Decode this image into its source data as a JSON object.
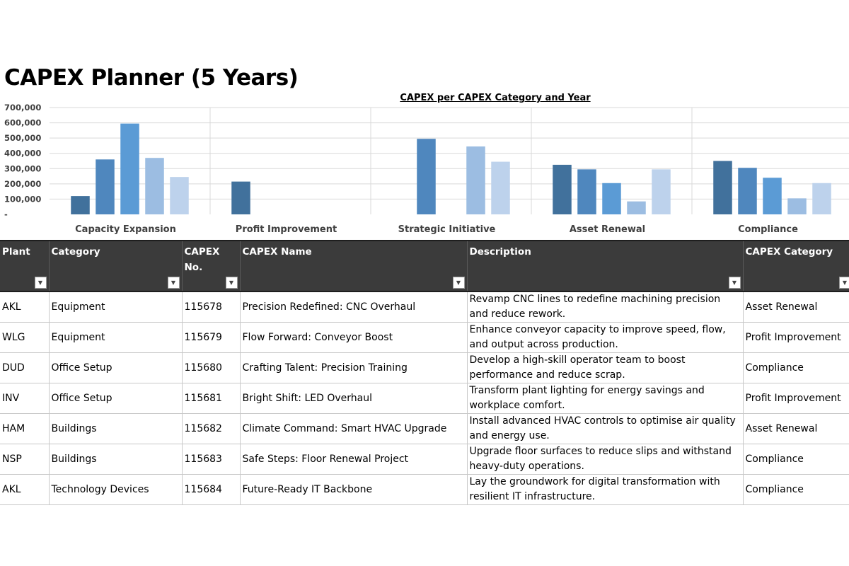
{
  "page": {
    "title": "CAPEX Planner (5 Years)"
  },
  "chart_data": {
    "type": "bar",
    "title": "CAPEX per CAPEX Category and Year",
    "categories": [
      "Capacity Expansion",
      "Profit Improvement",
      "Strategic Initiative",
      "Asset Renewal",
      "Compliance"
    ],
    "series": [
      {
        "values": [
          120000,
          215000,
          0,
          325000,
          350000
        ]
      },
      {
        "values": [
          360000,
          0,
          495000,
          295000,
          305000
        ]
      },
      {
        "values": [
          595000,
          0,
          0,
          205000,
          240000
        ]
      },
      {
        "values": [
          370000,
          0,
          445000,
          85000,
          105000
        ]
      },
      {
        "values": [
          245000,
          0,
          345000,
          295000,
          205000
        ]
      }
    ],
    "ylim": [
      0,
      700000
    ],
    "yticks": [
      0,
      100000,
      200000,
      300000,
      400000,
      500000,
      600000,
      700000
    ],
    "ytick_labels": [
      "-",
      "100,000",
      "200,000",
      "300,000",
      "400,000",
      "500,000",
      "600,000",
      "700,000"
    ],
    "colors": [
      "#41719c",
      "#4f87be",
      "#5b9bd5",
      "#9cbde2",
      "#bdd2ec"
    ],
    "grid": true
  },
  "table": {
    "headers": [
      {
        "label": "Plant",
        "filter": "▼"
      },
      {
        "label": "Category",
        "filter": "▼"
      },
      {
        "label": "CAPEX No.",
        "filter": "▼"
      },
      {
        "label": "CAPEX Name",
        "filter": "▼"
      },
      {
        "label": "Description",
        "filter": "▼"
      },
      {
        "label": "CAPEX Category",
        "filter": "▼"
      }
    ],
    "rows": [
      {
        "plant": "AKL",
        "category": "Equipment",
        "no": "115678",
        "name": "Precision Redefined: CNC Overhaul",
        "description": "Revamp CNC lines to redefine machining precision and reduce rework.",
        "capex_category": "Asset Renewal"
      },
      {
        "plant": "WLG",
        "category": "Equipment",
        "no": "115679",
        "name": "Flow Forward: Conveyor Boost",
        "description": "Enhance conveyor capacity to improve speed, flow, and output across production.",
        "capex_category": "Profit Improvement"
      },
      {
        "plant": "DUD",
        "category": "Office Setup",
        "no": "115680",
        "name": "Crafting Talent: Precision Training",
        "description": "Develop a high-skill operator team to boost performance and reduce scrap.",
        "capex_category": "Compliance"
      },
      {
        "plant": "INV",
        "category": "Office Setup",
        "no": "115681",
        "name": "Bright Shift: LED Overhaul",
        "description": "Transform plant lighting for energy savings and workplace comfort.",
        "capex_category": "Profit Improvement"
      },
      {
        "plant": "HAM",
        "category": "Buildings",
        "no": "115682",
        "name": "Climate Command: Smart HVAC Upgrade",
        "description": "Install advanced HVAC controls to optimise air quality and energy use.",
        "capex_category": "Asset Renewal"
      },
      {
        "plant": "NSP",
        "category": "Buildings",
        "no": "115683",
        "name": "Safe Steps: Floor Renewal Project",
        "description": "Upgrade floor surfaces to reduce slips and withstand heavy-duty operations.",
        "capex_category": "Compliance"
      },
      {
        "plant": "AKL",
        "category": "Technology Devices",
        "no": "115684",
        "name": "Future-Ready IT Backbone",
        "description": "Lay the groundwork for digital transformation with resilient IT infrastructure.",
        "capex_category": "Compliance"
      }
    ]
  }
}
